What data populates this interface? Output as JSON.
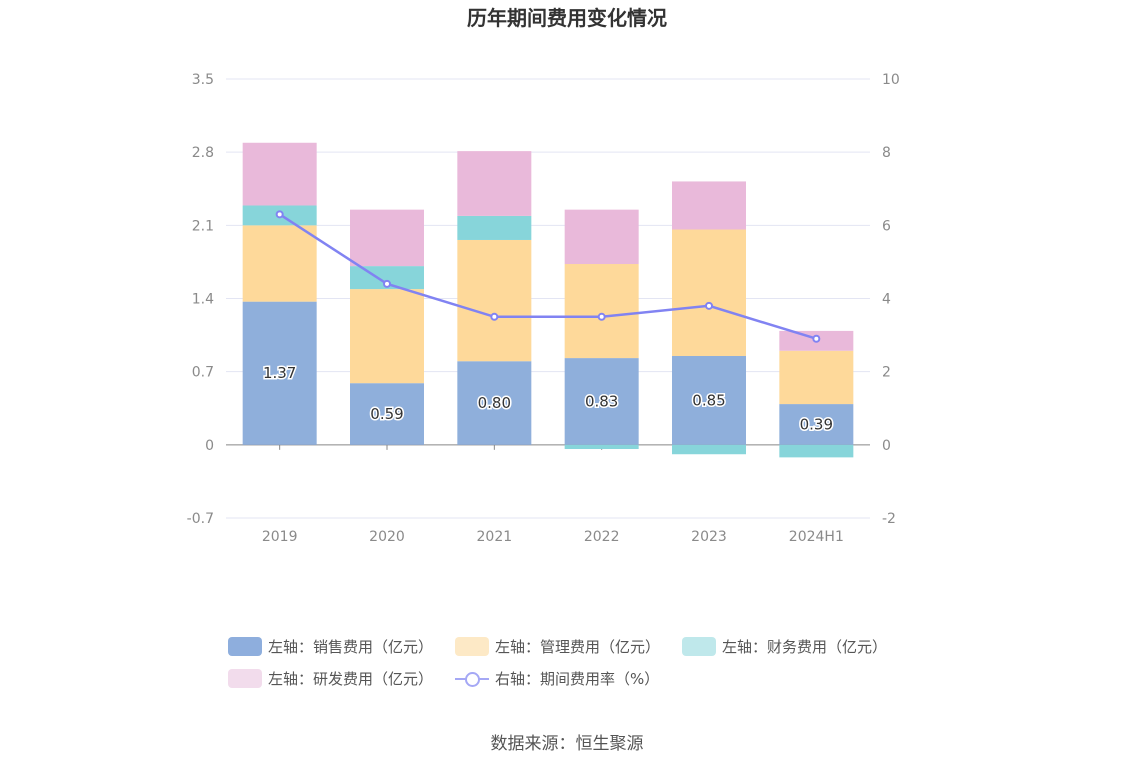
{
  "title": "历年期间费用变化情况",
  "source": "数据来源：恒生聚源",
  "legend": [
    {
      "label": "左轴：销售费用（亿元）",
      "color": "#8eaedd",
      "type": "box"
    },
    {
      "label": "左轴：管理费用（亿元）",
      "color": "#fde9c6",
      "type": "box"
    },
    {
      "label": "左轴：财务费用（亿元）",
      "color": "#bfe8eb",
      "type": "box"
    },
    {
      "label": "左轴：研发费用（亿元）",
      "color": "#f2dcec",
      "type": "box"
    },
    {
      "label": "右轴：期间费用率（%）",
      "color": "#a5a8f5",
      "type": "line"
    }
  ],
  "chart_data": {
    "type": "bar",
    "stacked": true,
    "categories": [
      "2019",
      "2020",
      "2021",
      "2022",
      "2023",
      "2024H1"
    ],
    "series": [
      {
        "name": "左轴：销售费用（亿元）",
        "axis": "left",
        "color": "#8fafdb",
        "values": [
          1.37,
          0.59,
          0.8,
          0.83,
          0.85,
          0.39
        ],
        "labels": [
          "1.37",
          "0.59",
          "0.80",
          "0.83",
          "0.85",
          "0.39"
        ]
      },
      {
        "name": "左轴：管理费用（亿元）",
        "axis": "left",
        "color": "#fed99a",
        "values": [
          0.73,
          0.9,
          1.16,
          0.9,
          1.21,
          0.51
        ]
      },
      {
        "name": "左轴：财务费用（亿元）",
        "axis": "left",
        "color": "#87d5da",
        "values": [
          0.19,
          0.22,
          0.23,
          -0.04,
          -0.09,
          -0.12
        ]
      },
      {
        "name": "左轴：研发费用（亿元）",
        "axis": "left",
        "color": "#e9b9da",
        "values": [
          0.6,
          0.54,
          0.62,
          0.52,
          0.46,
          0.19
        ]
      },
      {
        "name": "右轴：期间费用率（%）",
        "axis": "right",
        "type": "line",
        "color": "#8183f2",
        "values": [
          6.3,
          4.4,
          3.5,
          3.5,
          3.8,
          2.9
        ]
      }
    ],
    "left_axis": {
      "ticks": [
        "3.5",
        "2.8",
        "2.1",
        "1.4",
        "0.7",
        "0",
        "-0.7"
      ],
      "min": -0.7,
      "max": 3.5
    },
    "right_axis": {
      "ticks": [
        "10",
        "8",
        "6",
        "4",
        "2",
        "0",
        "-2"
      ],
      "min": -2,
      "max": 10
    },
    "grid": true
  }
}
